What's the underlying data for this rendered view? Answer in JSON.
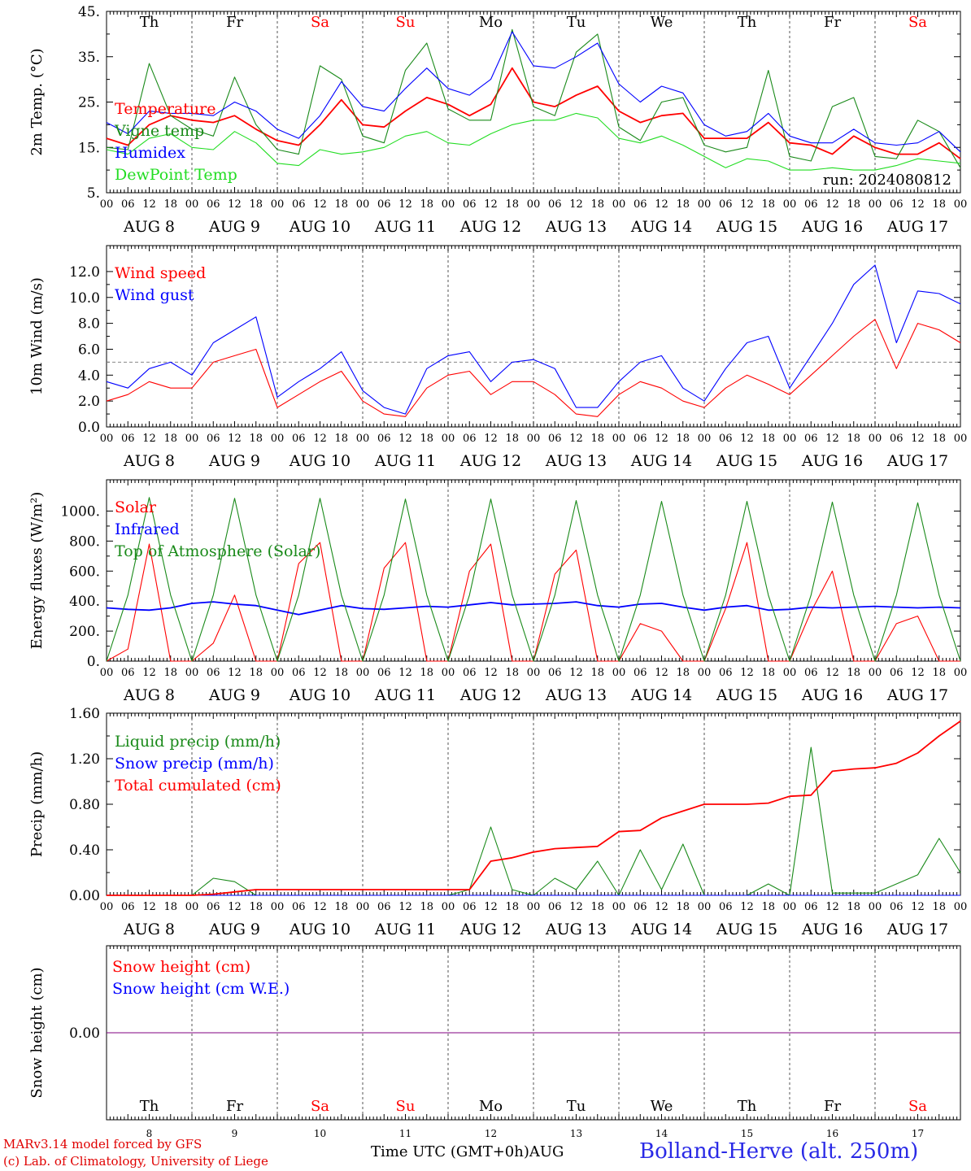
{
  "footer": {
    "model_line": "MARv3.14 model forced by GFS",
    "copyright_line": "(c) Lab. of Climatology, University of Liege",
    "xaxis_title": "Time UTC (GMT+0h)",
    "month": "AUG",
    "station": "Bolland-Herve (alt. 250m)"
  },
  "timeline": {
    "weekdays": [
      "Th",
      "Fr",
      "Sa",
      "Su",
      "Mo",
      "Tu",
      "We",
      "Th",
      "Fr",
      "Sa"
    ],
    "weekend": [
      false,
      false,
      true,
      true,
      false,
      false,
      false,
      false,
      false,
      true
    ],
    "dates": [
      "AUG  8",
      "AUG  9",
      "AUG 10",
      "AUG 11",
      "AUG 12",
      "AUG 13",
      "AUG 14",
      "AUG 15",
      "AUG 16",
      "AUG 17"
    ],
    "day_numbers": [
      "8",
      "9",
      "10",
      "11",
      "12",
      "13",
      "14",
      "15",
      "16",
      "17"
    ],
    "hours": [
      "00",
      "06",
      "12",
      "18"
    ],
    "end_hour": "00"
  },
  "colors": {
    "red": "#ff0000",
    "green": "#1a8a1a",
    "blue": "#0000ff",
    "lightgreen": "#22dd22",
    "purple": "#800080",
    "weekend": "#ff0000",
    "grid": "#555555"
  },
  "chart_data": [
    {
      "type": "line",
      "ylabel": "2m Temp. (°C)",
      "ylim": [
        5,
        45
      ],
      "yticks": [
        "5.",
        "15.",
        "25.",
        "35.",
        "45."
      ],
      "run_label": "run: 2024080812",
      "show_weekdays": true,
      "legend": [
        "Temperature",
        "Vigne temp",
        "Humidex",
        "DewPoint Temp"
      ],
      "x_days": [
        0,
        0.25,
        0.5,
        0.75,
        1,
        1.25,
        1.5,
        1.75,
        2,
        2.25,
        2.5,
        2.75,
        3,
        3.25,
        3.5,
        3.75,
        4,
        4.25,
        4.5,
        4.75,
        5,
        5.25,
        5.5,
        5.75,
        6,
        6.25,
        6.5,
        6.75,
        7,
        7.25,
        7.5,
        7.75,
        8,
        8.25,
        8.5,
        8.75,
        9,
        9.25,
        9.5,
        9.75,
        10
      ],
      "series": [
        {
          "name": "Temperature",
          "color": "red",
          "values": [
            17,
            15.5,
            20,
            22,
            21,
            20.5,
            22,
            19,
            16.5,
            15.5,
            20,
            25.5,
            20,
            19.5,
            23,
            26,
            24.5,
            22,
            24.5,
            32.5,
            25,
            24,
            26.5,
            28.5,
            23,
            20.5,
            22,
            22.5,
            17,
            17,
            17,
            20.5,
            16,
            15.5,
            13.5,
            17.5,
            15,
            13.5,
            13.5,
            16,
            12.5
          ]
        },
        {
          "name": "Vigne temp",
          "color": "green",
          "values": [
            15,
            14.5,
            33.5,
            22,
            19,
            17.5,
            30.5,
            20,
            14.5,
            13.5,
            33,
            30,
            17.5,
            16,
            32,
            38,
            23.5,
            21,
            21,
            41,
            24,
            22,
            36,
            40,
            19.5,
            16.5,
            25,
            26,
            15.5,
            14,
            15,
            32,
            13,
            12,
            24,
            26,
            13,
            12.5,
            21,
            18.5,
            10.5
          ]
        },
        {
          "name": "Humidex",
          "color": "blue",
          "values": [
            20.5,
            18,
            23,
            22.5,
            22.5,
            22,
            25,
            23,
            19,
            17,
            22,
            29.5,
            24,
            23,
            28,
            32.5,
            28,
            26.5,
            30,
            40.5,
            33,
            32.5,
            35,
            38,
            29,
            25,
            28.5,
            27,
            20,
            17.5,
            18.5,
            22.5,
            17.5,
            16,
            16,
            19,
            16,
            15.5,
            16,
            18.5,
            14
          ]
        },
        {
          "name": "DewPoint Temp",
          "color": "lightgreen",
          "values": [
            14.5,
            13.5,
            17,
            18,
            15,
            14.5,
            18.5,
            16,
            11.5,
            11,
            14.5,
            13.5,
            14,
            15,
            17.5,
            18.5,
            16,
            15.5,
            18,
            20,
            21,
            21,
            22.5,
            21.5,
            17,
            16,
            17.5,
            15.5,
            13,
            10.5,
            12.5,
            12,
            10,
            10,
            10.5,
            10,
            10,
            11,
            12.5,
            12,
            11.5
          ]
        }
      ]
    },
    {
      "type": "line",
      "ylabel": "10m Wind (m/s)",
      "ylim": [
        0,
        13
      ],
      "yticks": [
        "0.0",
        "2.0",
        "4.0",
        "6.0",
        "8.0",
        "10.0",
        "12.0"
      ],
      "reference_line": 5,
      "legend": [
        "Wind speed",
        "Wind gust"
      ],
      "x_days": [
        0,
        0.25,
        0.5,
        0.75,
        1,
        1.25,
        1.5,
        1.75,
        2,
        2.25,
        2.5,
        2.75,
        3,
        3.25,
        3.5,
        3.75,
        4,
        4.25,
        4.5,
        4.75,
        5,
        5.25,
        5.5,
        5.75,
        6,
        6.25,
        6.5,
        6.75,
        7,
        7.25,
        7.5,
        7.75,
        8,
        8.25,
        8.5,
        8.75,
        9,
        9.25,
        9.5,
        9.75,
        10
      ],
      "series": [
        {
          "name": "Wind speed",
          "color": "red",
          "values": [
            2,
            2.5,
            3.5,
            3,
            3,
            5,
            5.5,
            6,
            1.5,
            2.5,
            3.5,
            4.3,
            2,
            1,
            0.8,
            3,
            4,
            4.3,
            2.5,
            3.5,
            3.5,
            2.5,
            1,
            0.8,
            2.5,
            3.5,
            3,
            2,
            1.5,
            3,
            4,
            3.3,
            2.5,
            4,
            5.5,
            7,
            8.3,
            4.5,
            8,
            7.5,
            6.5
          ]
        },
        {
          "name": "Wind gust",
          "color": "blue",
          "values": [
            3.5,
            3,
            4.5,
            5,
            4,
            6.5,
            7.5,
            8.5,
            2.3,
            3.5,
            4.5,
            5.8,
            2.8,
            1.5,
            1,
            4.5,
            5.5,
            5.8,
            3.5,
            5,
            5.2,
            4.5,
            1.5,
            1.5,
            3.5,
            5,
            5.5,
            3,
            2,
            4.5,
            6.5,
            7,
            3,
            5.5,
            8,
            11,
            12.5,
            6.5,
            10.5,
            10.3,
            9.5
          ]
        }
      ]
    },
    {
      "type": "line",
      "ylabel": "Energy fluxes (W/m²)",
      "ylim": [
        0,
        1100
      ],
      "yticks": [
        "0.",
        "200.",
        "400.",
        "600.",
        "800.",
        "1000."
      ],
      "legend": [
        "Solar",
        "Infrared",
        "Top of Atmosphere (Solar)"
      ],
      "x_days": [
        0,
        0.25,
        0.5,
        0.75,
        1,
        1.25,
        1.5,
        1.75,
        2,
        2.25,
        2.5,
        2.75,
        3,
        3.25,
        3.5,
        3.75,
        4,
        4.25,
        4.5,
        4.75,
        5,
        5.25,
        5.5,
        5.75,
        6,
        6.25,
        6.5,
        6.75,
        7,
        7.25,
        7.5,
        7.75,
        8,
        8.25,
        8.5,
        8.75,
        9,
        9.25,
        9.5,
        9.75,
        10
      ],
      "series": [
        {
          "name": "Solar",
          "color": "red",
          "values": [
            0,
            80,
            780,
            0,
            0,
            120,
            440,
            0,
            0,
            650,
            790,
            0,
            0,
            620,
            790,
            0,
            0,
            600,
            780,
            0,
            0,
            580,
            740,
            0,
            0,
            250,
            200,
            0,
            0,
            350,
            790,
            0,
            0,
            330,
            600,
            0,
            0,
            250,
            300,
            0,
            0
          ]
        },
        {
          "name": "Infrared",
          "color": "blue",
          "values": [
            355,
            345,
            340,
            355,
            385,
            395,
            380,
            370,
            340,
            310,
            340,
            370,
            350,
            345,
            355,
            365,
            360,
            375,
            390,
            375,
            380,
            385,
            395,
            370,
            360,
            380,
            385,
            360,
            340,
            360,
            370,
            340,
            345,
            360,
            355,
            360,
            365,
            360,
            355,
            360,
            355
          ]
        },
        {
          "name": "Top of Atmosphere (Solar)",
          "color": "green",
          "values": [
            0,
            440,
            1090,
            440,
            0,
            440,
            1085,
            440,
            0,
            440,
            1085,
            440,
            0,
            440,
            1080,
            440,
            0,
            440,
            1080,
            440,
            0,
            440,
            1070,
            440,
            0,
            440,
            1065,
            440,
            0,
            440,
            1065,
            440,
            0,
            440,
            1060,
            440,
            0,
            440,
            1055,
            440,
            0
          ]
        }
      ]
    },
    {
      "type": "line",
      "ylabel": "Precip (mm/h)",
      "ylim": [
        0,
        1.6
      ],
      "yticks": [
        "0.00",
        "0.40",
        "0.80",
        "1.20",
        "1.60"
      ],
      "legend": [
        "Liquid precip (mm/h)",
        "Snow precip (mm/h)",
        "Total cumulated (cm)"
      ],
      "x_days": [
        0,
        0.25,
        0.5,
        0.75,
        1,
        1.25,
        1.5,
        1.75,
        2,
        2.25,
        2.5,
        2.75,
        3,
        3.25,
        3.5,
        3.75,
        4,
        4.25,
        4.5,
        4.75,
        5,
        5.25,
        5.5,
        5.75,
        6,
        6.25,
        6.5,
        6.75,
        7,
        7.25,
        7.5,
        7.75,
        8,
        8.25,
        8.5,
        8.75,
        9,
        9.25,
        9.5,
        9.75,
        10
      ],
      "series": [
        {
          "name": "Liquid precip (mm/h)",
          "color": "green",
          "values": [
            0,
            0,
            0,
            0,
            0,
            0.15,
            0.12,
            0,
            0,
            0,
            0,
            0,
            0,
            0,
            0,
            0,
            0,
            0.05,
            0.6,
            0.05,
            0,
            0.15,
            0.05,
            0.3,
            0,
            0.4,
            0.05,
            0.45,
            0,
            0,
            0,
            0.1,
            0,
            1.3,
            0.02,
            0.02,
            0.02,
            0.1,
            0.18,
            0.5,
            0.2
          ]
        },
        {
          "name": "Snow precip (mm/h)",
          "color": "blue",
          "values": [
            0,
            0,
            0,
            0,
            0,
            0,
            0,
            0,
            0,
            0,
            0,
            0,
            0,
            0,
            0,
            0,
            0,
            0,
            0,
            0,
            0,
            0,
            0,
            0,
            0,
            0,
            0,
            0,
            0,
            0,
            0,
            0,
            0,
            0,
            0,
            0,
            0,
            0,
            0,
            0,
            0
          ]
        },
        {
          "name": "Total cumulated (cm)",
          "color": "red",
          "values": [
            0,
            0,
            0,
            0,
            0,
            0.01,
            0.03,
            0.05,
            0.05,
            0.05,
            0.05,
            0.05,
            0.05,
            0.05,
            0.05,
            0.05,
            0.05,
            0.05,
            0.3,
            0.33,
            0.38,
            0.41,
            0.42,
            0.43,
            0.56,
            0.57,
            0.68,
            0.74,
            0.8,
            0.8,
            0.8,
            0.81,
            0.87,
            0.88,
            1.09,
            1.11,
            1.12,
            1.16,
            1.25,
            1.4,
            1.53
          ]
        }
      ]
    },
    {
      "type": "line",
      "ylabel": "Snow height (cm)",
      "ylim": [
        -0.5,
        0.5
      ],
      "yticks": [
        "0.00"
      ],
      "legend": [
        "Snow height (cm)",
        "Snow height (cm W.E.)"
      ],
      "x_days": [
        0,
        10
      ],
      "series": [
        {
          "name": "Snow height (cm)",
          "color": "red",
          "values": [
            0,
            0
          ]
        },
        {
          "name": "Snow height (cm W.E.)",
          "color": "blue",
          "values": [
            0,
            0
          ]
        }
      ]
    }
  ]
}
